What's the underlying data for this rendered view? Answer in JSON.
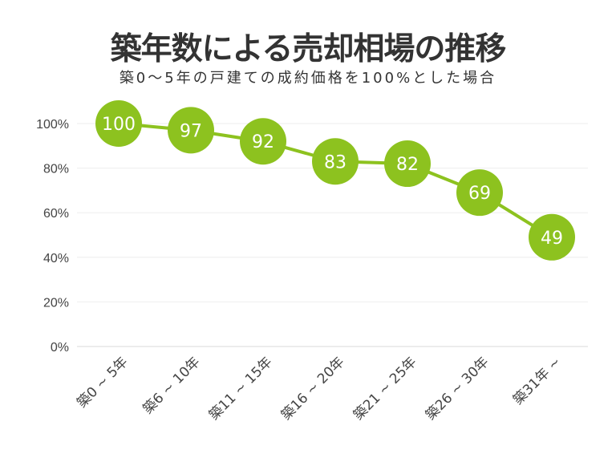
{
  "chart_data": {
    "type": "line",
    "title": "築年数による売却相場の推移",
    "subtitle": "築0〜5年の戸建ての成約価格を100%とした場合",
    "categories": [
      "築0 ~ 5年",
      "築6 ~ 10年",
      "築11 ~ 15年",
      "築16 ~ 20年",
      "築21 ~ 25年",
      "築26 ~ 30年",
      "築31年 ~"
    ],
    "values": [
      100,
      97,
      92,
      83,
      82,
      69,
      49
    ],
    "data_labels": [
      "100",
      "97",
      "92",
      "83",
      "82",
      "69",
      "49"
    ],
    "xlabel": "",
    "ylabel": "",
    "ylim": [
      0,
      100
    ],
    "yticks": [
      "0%",
      "20%",
      "40%",
      "60%",
      "80%",
      "100%"
    ],
    "grid": true,
    "color": "#8dc21f"
  }
}
